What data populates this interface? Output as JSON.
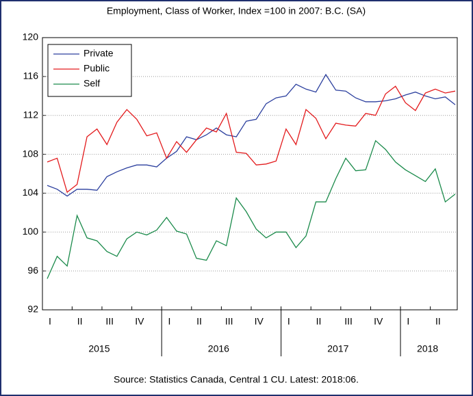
{
  "chart_data": {
    "type": "line",
    "title": "Employment, Class of Worker, Index =100 in 2007: B.C. (SA)",
    "source": "Source: Statistics Canada, Central 1 CU. Latest: 2018:06.",
    "categories": [
      "I",
      null,
      null,
      "II",
      null,
      null,
      "III",
      null,
      null,
      "IV",
      null,
      null,
      "I",
      null,
      null,
      "II",
      null,
      null,
      "III",
      null,
      null,
      "IV",
      null,
      null,
      "I",
      null,
      null,
      "II",
      null,
      null,
      "III",
      null,
      null,
      "IV",
      null,
      null,
      "I",
      null,
      null,
      "II",
      null,
      null
    ],
    "years": [
      "2015",
      "2016",
      "2017",
      "2018"
    ],
    "ylim": [
      92,
      120
    ],
    "yticks": [
      92,
      96,
      100,
      104,
      108,
      112,
      116,
      120
    ],
    "grid": true,
    "legend": "upper-left",
    "series": [
      {
        "name": "Private",
        "color": "#2b3f9e",
        "values": [
          104.8,
          104.4,
          103.7,
          104.4,
          104.4,
          104.3,
          105.7,
          106.2,
          106.6,
          106.9,
          106.9,
          106.7,
          107.6,
          108.3,
          109.8,
          109.5,
          110.0,
          110.7,
          110.0,
          109.8,
          111.4,
          111.6,
          113.2,
          113.8,
          114.0,
          115.2,
          114.7,
          114.4,
          116.2,
          114.6,
          114.5,
          113.8,
          113.4,
          113.4,
          113.5,
          113.7,
          114.1,
          114.4,
          114.0,
          113.7,
          113.9,
          113.1
        ]
      },
      {
        "name": "Public",
        "color": "#e31a1c",
        "values": [
          107.2,
          107.6,
          104.1,
          104.9,
          109.8,
          110.6,
          109.0,
          111.3,
          112.6,
          111.6,
          109.9,
          110.2,
          107.6,
          109.3,
          108.2,
          109.5,
          110.7,
          110.3,
          112.2,
          108.2,
          108.1,
          106.9,
          107.0,
          107.3,
          110.6,
          109.0,
          112.6,
          111.7,
          109.6,
          111.2,
          111.0,
          110.9,
          112.2,
          112.0,
          114.2,
          115.0,
          113.3,
          112.5,
          114.3,
          114.7,
          114.3,
          114.5
        ]
      },
      {
        "name": "Self",
        "color": "#1a8a4a",
        "values": [
          95.2,
          97.5,
          96.5,
          101.7,
          99.4,
          99.1,
          98.0,
          97.5,
          99.3,
          100.0,
          99.7,
          100.2,
          101.5,
          100.1,
          99.8,
          97.3,
          97.1,
          99.1,
          98.6,
          103.5,
          102.1,
          100.3,
          99.4,
          100.0,
          100.0,
          98.4,
          99.6,
          103.1,
          103.1,
          105.5,
          107.6,
          106.3,
          106.4,
          109.4,
          108.5,
          107.2,
          106.4,
          105.8,
          105.2,
          106.5,
          103.1,
          103.9
        ]
      }
    ]
  }
}
